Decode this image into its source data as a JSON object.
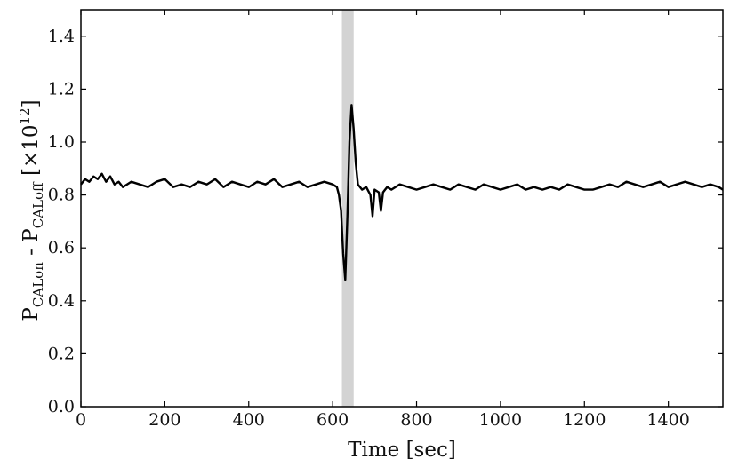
{
  "chart_data": {
    "type": "line",
    "title": "",
    "xlabel": "Time [sec]",
    "ylabel": {
      "p1": "P",
      "sub1": "CALon",
      "mid": " - P",
      "sub2": "CALoff",
      "scale_prefix": " [×10",
      "scale_exp": "12",
      "scale_suffix": "]"
    },
    "xlim": [
      0,
      1530
    ],
    "ylim": [
      0.0,
      1.5
    ],
    "xticks": [
      0,
      200,
      400,
      600,
      800,
      1000,
      1200,
      1400
    ],
    "yticks": [
      0.0,
      0.2,
      0.4,
      0.6,
      0.8,
      1.0,
      1.2,
      1.4
    ],
    "xtick_labels": [
      "0",
      "200",
      "400",
      "600",
      "800",
      "1000",
      "1200",
      "1400"
    ],
    "ytick_labels": [
      "0.0",
      "0.2",
      "0.4",
      "0.6",
      "0.8",
      "1.0",
      "1.2",
      "1.4"
    ],
    "grid": false,
    "highlight_band": {
      "x_range": [
        622,
        650
      ],
      "color": "#d3d3d3"
    },
    "line_color": "#000000",
    "series": [
      {
        "x": [
          0,
          10,
          20,
          30,
          40,
          50,
          60,
          70,
          80,
          90,
          100,
          120,
          140,
          160,
          180,
          200,
          220,
          240,
          260,
          280,
          300,
          320,
          340,
          360,
          380,
          400,
          420,
          440,
          460,
          480,
          500,
          520,
          540,
          560,
          580,
          600,
          610,
          615,
          620,
          625,
          630,
          635,
          640,
          645,
          650,
          655,
          660,
          670,
          680,
          690,
          695,
          700,
          710,
          715,
          720,
          725,
          730,
          740,
          760,
          780,
          800,
          820,
          840,
          860,
          880,
          900,
          920,
          940,
          960,
          980,
          1000,
          1020,
          1040,
          1060,
          1080,
          1100,
          1120,
          1140,
          1160,
          1180,
          1200,
          1220,
          1240,
          1260,
          1280,
          1300,
          1320,
          1340,
          1360,
          1380,
          1400,
          1420,
          1440,
          1460,
          1480,
          1500,
          1520,
          1530
        ],
        "y": [
          0.84,
          0.86,
          0.85,
          0.87,
          0.86,
          0.88,
          0.85,
          0.87,
          0.84,
          0.85,
          0.83,
          0.85,
          0.84,
          0.83,
          0.85,
          0.86,
          0.83,
          0.84,
          0.83,
          0.85,
          0.84,
          0.86,
          0.83,
          0.85,
          0.84,
          0.83,
          0.85,
          0.84,
          0.86,
          0.83,
          0.84,
          0.85,
          0.83,
          0.84,
          0.85,
          0.84,
          0.83,
          0.8,
          0.74,
          0.58,
          0.48,
          0.72,
          1.0,
          1.14,
          1.05,
          0.92,
          0.84,
          0.82,
          0.83,
          0.8,
          0.72,
          0.82,
          0.81,
          0.74,
          0.81,
          0.82,
          0.83,
          0.82,
          0.84,
          0.83,
          0.82,
          0.83,
          0.84,
          0.83,
          0.82,
          0.84,
          0.83,
          0.82,
          0.84,
          0.83,
          0.82,
          0.83,
          0.84,
          0.82,
          0.83,
          0.82,
          0.83,
          0.82,
          0.84,
          0.83,
          0.82,
          0.82,
          0.83,
          0.84,
          0.83,
          0.85,
          0.84,
          0.83,
          0.84,
          0.85,
          0.83,
          0.84,
          0.85,
          0.84,
          0.83,
          0.84,
          0.83,
          0.82
        ]
      }
    ]
  }
}
